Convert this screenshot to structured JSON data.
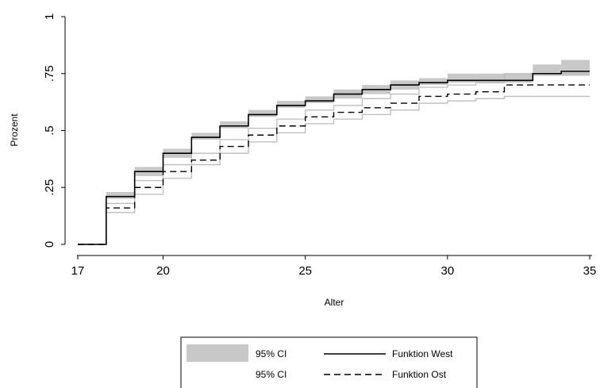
{
  "chart_data": {
    "type": "line",
    "xlabel": "Alter",
    "ylabel": "Prozent",
    "xlim": [
      17,
      35
    ],
    "ylim": [
      0,
      1
    ],
    "x_ticks": [
      17,
      20,
      25,
      30,
      35
    ],
    "x_tick_labels": [
      "17",
      "20",
      "25",
      "30",
      "35"
    ],
    "y_ticks": [
      0,
      0.25,
      0.5,
      0.75,
      1
    ],
    "y_tick_labels": [
      "0",
      ".25",
      ".5",
      ".75",
      "1"
    ],
    "grid": false,
    "step": true,
    "legend_position": "bottom",
    "x": [
      17,
      18,
      19,
      20,
      21,
      22,
      23,
      24,
      25,
      26,
      27,
      28,
      29,
      30,
      31,
      32,
      33,
      34,
      35
    ],
    "series": [
      {
        "name": "Funktion West",
        "style": "solid",
        "color": "#000000",
        "values": [
          0,
          0.21,
          0.32,
          0.4,
          0.47,
          0.52,
          0.57,
          0.61,
          0.63,
          0.66,
          0.68,
          0.7,
          0.71,
          0.72,
          0.72,
          0.72,
          0.75,
          0.76,
          0.76
        ],
        "ci_lower": [
          0,
          0.2,
          0.3,
          0.38,
          0.46,
          0.51,
          0.56,
          0.6,
          0.62,
          0.64,
          0.66,
          0.68,
          0.7,
          0.71,
          0.71,
          0.71,
          0.74,
          0.74,
          0.74
        ],
        "ci_upper": [
          0,
          0.23,
          0.34,
          0.42,
          0.49,
          0.54,
          0.59,
          0.63,
          0.65,
          0.68,
          0.7,
          0.72,
          0.73,
          0.75,
          0.75,
          0.75,
          0.79,
          0.81,
          0.81
        ],
        "ci_style": "filled",
        "ci_color": "#c8c8c8"
      },
      {
        "name": "Funktion Ost",
        "style": "dashed",
        "color": "#000000",
        "values": [
          0,
          0.16,
          0.25,
          0.32,
          0.37,
          0.43,
          0.48,
          0.52,
          0.56,
          0.58,
          0.6,
          0.62,
          0.65,
          0.66,
          0.67,
          0.7,
          0.7,
          0.7,
          0.7
        ],
        "ci_lower": [
          0,
          0.14,
          0.22,
          0.29,
          0.35,
          0.4,
          0.45,
          0.49,
          0.53,
          0.55,
          0.57,
          0.59,
          0.62,
          0.63,
          0.64,
          0.65,
          0.65,
          0.65,
          0.65
        ],
        "ci_upper": [
          0,
          0.18,
          0.28,
          0.35,
          0.4,
          0.46,
          0.51,
          0.55,
          0.59,
          0.61,
          0.64,
          0.66,
          0.69,
          0.7,
          0.71,
          0.75,
          0.75,
          0.75,
          0.75
        ],
        "ci_style": "outline",
        "ci_color": "#bcbcbc"
      }
    ],
    "legend": [
      {
        "label": "95% CI",
        "symbol": "ci-fill"
      },
      {
        "label": "Funktion West",
        "symbol": "solid-line"
      },
      {
        "label": "95% CI",
        "symbol": "ci-line"
      },
      {
        "label": "Funktion Ost",
        "symbol": "dashed-line"
      }
    ]
  }
}
